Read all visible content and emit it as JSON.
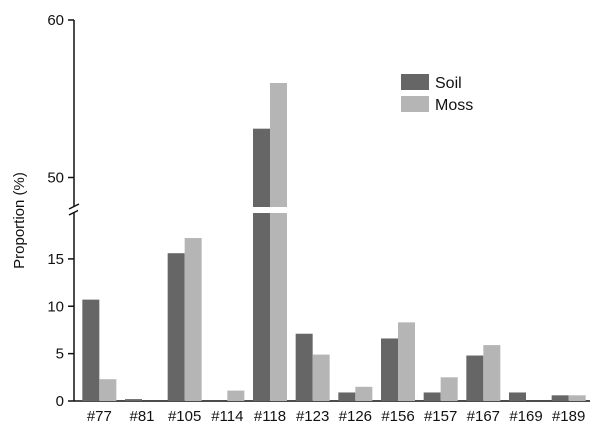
{
  "chart_data": {
    "type": "bar",
    "title": "",
    "xlabel": "",
    "ylabel": "Proportion (%)",
    "axis_break": true,
    "ylim_lower": [
      0,
      19
    ],
    "ylim_upper": [
      48,
      60
    ],
    "yticks_lower": [
      0,
      5,
      10,
      15
    ],
    "yticks_upper": [
      50,
      60
    ],
    "categories": [
      "#77",
      "#81",
      "#105",
      "#114",
      "#118",
      "#123",
      "#126",
      "#156",
      "#157",
      "#167",
      "#169",
      "#189"
    ],
    "series": [
      {
        "name": "Soil",
        "color": "#666666",
        "values": [
          10.7,
          0.2,
          15.6,
          0,
          53.1,
          7.1,
          0.9,
          6.6,
          0.9,
          4.8,
          0.9,
          0.6
        ]
      },
      {
        "name": "Moss",
        "color": "#b5b5b5",
        "values": [
          2.3,
          0,
          17.2,
          1.1,
          56.0,
          4.9,
          1.5,
          8.3,
          2.5,
          5.9,
          0,
          0.6
        ]
      }
    ],
    "legend_position": "top-right",
    "grid": false
  }
}
